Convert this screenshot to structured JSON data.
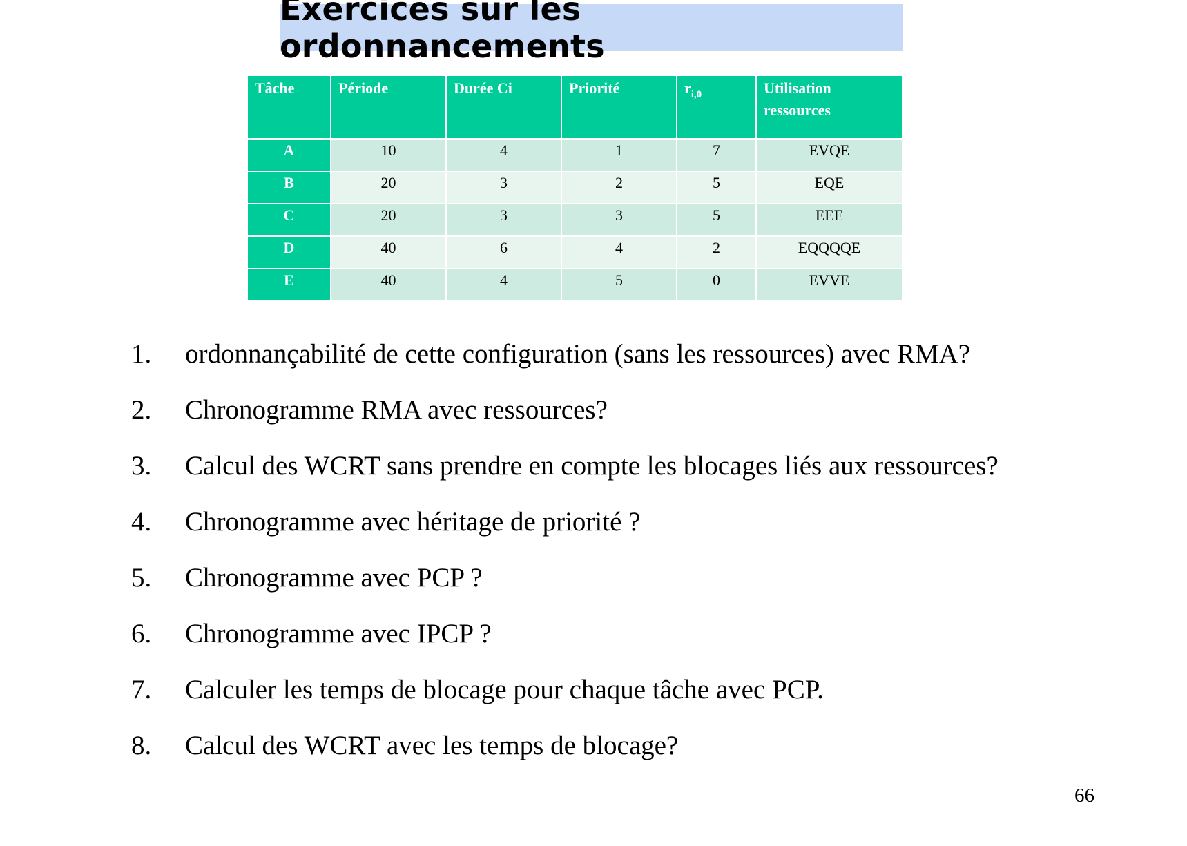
{
  "title": "Exercices sur les ordonnancements",
  "table": {
    "headers": {
      "tache": "Tâche",
      "periode": "Période",
      "duree": "Durée Ci",
      "priorite": "Priorité",
      "r_base": "r",
      "r_sub": "i,0",
      "utilisation_line1": "Utilisation",
      "utilisation_line2": "ressources"
    },
    "rows": [
      {
        "task": "A",
        "periode": "10",
        "duree": "4",
        "priorite": "1",
        "r": "7",
        "utilisation": "EVQE"
      },
      {
        "task": "B",
        "periode": "20",
        "duree": "3",
        "priorite": "2",
        "r": "5",
        "utilisation": "EQE"
      },
      {
        "task": "C",
        "periode": "20",
        "duree": "3",
        "priorite": "3",
        "r": "5",
        "utilisation": "EEE"
      },
      {
        "task": "D",
        "periode": "40",
        "duree": "6",
        "priorite": "4",
        "r": "2",
        "utilisation": "EQQQQE"
      },
      {
        "task": "E",
        "periode": "40",
        "duree": "4",
        "priorite": "5",
        "r": "0",
        "utilisation": "EVVE"
      }
    ]
  },
  "questions": [
    {
      "num": "1.",
      "text": "ordonnançabilité de cette configuration (sans les ressources) avec RMA?"
    },
    {
      "num": "2.",
      "text": "Chronogramme RMA avec ressources?"
    },
    {
      "num": "3.",
      "text": "Calcul des WCRT sans prendre en compte les blocages liés aux ressources?"
    },
    {
      "num": "4.",
      "text": "Chronogramme avec héritage de priorité ?"
    },
    {
      "num": "5.",
      "text": "Chronogramme avec PCP ?"
    },
    {
      "num": "6.",
      "text": "Chronogramme avec IPCP ?"
    },
    {
      "num": "7.",
      "text": "Calculer les temps de blocage pour chaque tâche avec PCP."
    },
    {
      "num": "8.",
      "text": "Calcul des WCRT avec les temps de blocage?"
    }
  ],
  "page_number": "66",
  "colors": {
    "title_background": "#c6d9f7",
    "table_header": "#00cc99",
    "row_odd": "#cdebe0",
    "row_even": "#e8f5ef"
  }
}
